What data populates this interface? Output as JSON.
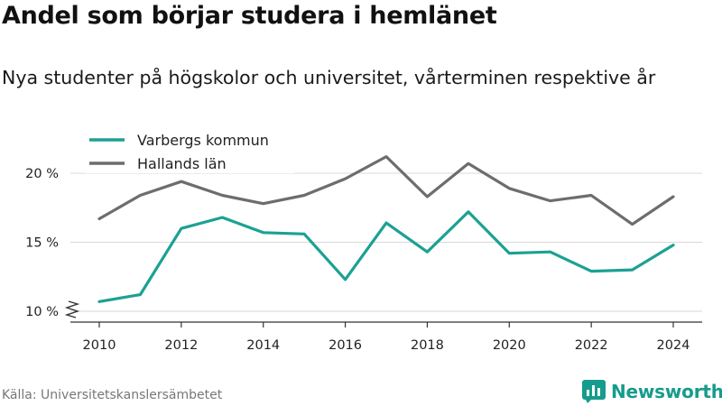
{
  "header": {
    "title": "Andel som börjar studera i hemlänet",
    "subtitle": "Nya studenter på högskolor och universitet, vårterminen respektive år"
  },
  "footer": {
    "source": "Källa: Universitetskanslersämbetet",
    "brand": "Newsworthy"
  },
  "icons": {
    "brand_logo": "bar-chart-logo-icon"
  },
  "colors": {
    "varberg": "#1ba194",
    "halland": "#6d6d6d",
    "brand": "#169c8c"
  },
  "chart_data": {
    "type": "line",
    "title": "Andel som börjar studera i hemlänet",
    "subtitle": "Nya studenter på högskolor och universitet, vårterminen respektive år",
    "x": [
      2010,
      2011,
      2012,
      2013,
      2014,
      2015,
      2016,
      2017,
      2018,
      2019,
      2020,
      2021,
      2022,
      2023,
      2024
    ],
    "xticks": [
      2010,
      2012,
      2014,
      2016,
      2018,
      2020,
      2022,
      2024
    ],
    "xtick_labels": [
      "2010",
      "2012",
      "2014",
      "2016",
      "2018",
      "2020",
      "2022",
      "2024"
    ],
    "yticks": [
      10,
      15,
      20
    ],
    "ytick_labels": [
      "10 %",
      "15 %",
      "20 %"
    ],
    "ylim": [
      9.4,
      22.5
    ],
    "y_axis_break": true,
    "grid": true,
    "legend_position": "top-left",
    "series": [
      {
        "name": "Varbergs kommun",
        "color": "#1ba194",
        "values": [
          10.7,
          11.2,
          16.0,
          16.8,
          15.7,
          15.6,
          12.3,
          16.4,
          14.3,
          17.2,
          14.2,
          14.3,
          12.9,
          13.0,
          14.8
        ]
      },
      {
        "name": "Hallands län",
        "color": "#6d6d6d",
        "values": [
          16.7,
          18.4,
          19.4,
          18.4,
          17.8,
          18.4,
          19.6,
          21.2,
          18.3,
          20.7,
          18.9,
          18.0,
          18.4,
          16.3,
          18.3
        ]
      }
    ]
  }
}
